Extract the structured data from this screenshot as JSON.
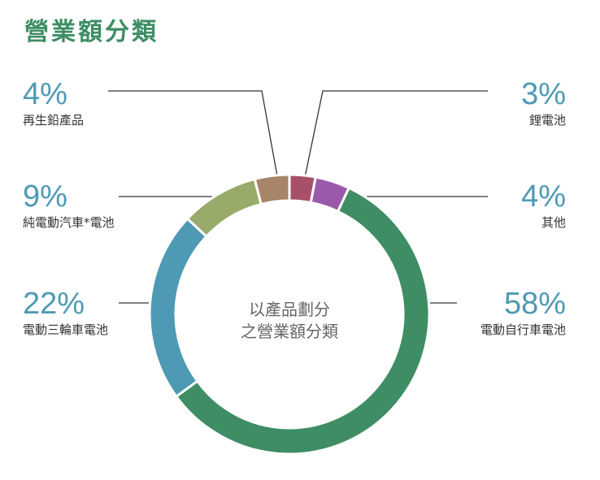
{
  "title": "營業額分類",
  "colors": {
    "title": "#3e8d64",
    "percent": "#4e9ab4"
  },
  "chart_data": {
    "type": "pie",
    "center_label": [
      "以產品劃分",
      "之營業額分類"
    ],
    "slices": [
      {
        "label": "鋰電池",
        "percent_text": "3%",
        "value": 3,
        "color": "#a8506a"
      },
      {
        "label": "其他",
        "percent_text": "4%",
        "value": 4,
        "color": "#9a5aaa"
      },
      {
        "label": "電動自行車電池",
        "percent_text": "58%",
        "value": 58,
        "color": "#3e8d64"
      },
      {
        "label": "電動三輪車電池",
        "percent_text": "22%",
        "value": 22,
        "color": "#4e9ab4"
      },
      {
        "label": "純電動汽車*電池",
        "percent_text": "9%",
        "value": 9,
        "color": "#98ab6a"
      },
      {
        "label": "再生鉛產品",
        "percent_text": "4%",
        "value": 4,
        "color": "#a88468"
      }
    ]
  }
}
